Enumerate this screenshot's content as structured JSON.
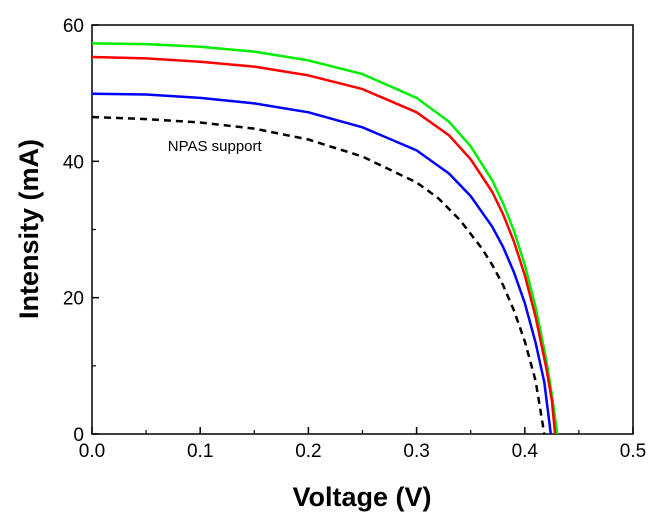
{
  "chart_data": {
    "type": "line",
    "title": "",
    "xlabel": "Voltage (V)",
    "ylabel": "Intensity (mA)",
    "xlim": [
      0,
      0.5
    ],
    "ylim": [
      0,
      60
    ],
    "x_ticks": [
      0.0,
      0.1,
      0.2,
      0.3,
      0.4,
      0.5
    ],
    "x_tick_labels": [
      "0.0",
      "0.1",
      "0.2",
      "0.3",
      "0.4",
      "0.5"
    ],
    "y_ticks": [
      0,
      20,
      40,
      60
    ],
    "y_tick_labels": [
      "0",
      "20",
      "40",
      "60"
    ],
    "grid": false,
    "legend": "none",
    "annotations": [
      {
        "text": "NPAS support",
        "x": 0.07,
        "y": 41.5
      }
    ],
    "series": [
      {
        "color": "#00ee00",
        "dash": "solid",
        "points": [
          [
            0,
            57.3
          ],
          [
            0.05,
            57.2
          ],
          [
            0.1,
            56.8
          ],
          [
            0.15,
            56.1
          ],
          [
            0.2,
            54.8
          ],
          [
            0.25,
            52.8
          ],
          [
            0.3,
            49.3
          ],
          [
            0.33,
            45.8
          ],
          [
            0.35,
            42.2
          ],
          [
            0.37,
            37.2
          ],
          [
            0.38,
            33.8
          ],
          [
            0.39,
            29.8
          ],
          [
            0.4,
            24.8
          ],
          [
            0.41,
            18.6
          ],
          [
            0.42,
            10.8
          ],
          [
            0.425,
            5.8
          ],
          [
            0.43,
            0
          ]
        ]
      },
      {
        "color": "#ff0000",
        "dash": "solid",
        "points": [
          [
            0,
            55.3
          ],
          [
            0.05,
            55.1
          ],
          [
            0.1,
            54.6
          ],
          [
            0.15,
            53.9
          ],
          [
            0.2,
            52.6
          ],
          [
            0.25,
            50.6
          ],
          [
            0.3,
            47.2
          ],
          [
            0.33,
            43.8
          ],
          [
            0.35,
            40.3
          ],
          [
            0.37,
            35.5
          ],
          [
            0.38,
            32.2
          ],
          [
            0.39,
            28.2
          ],
          [
            0.4,
            23.3
          ],
          [
            0.41,
            17.2
          ],
          [
            0.42,
            9.6
          ],
          [
            0.425,
            5.0
          ],
          [
            0.428,
            0
          ]
        ]
      },
      {
        "color": "#0000ff",
        "dash": "solid",
        "points": [
          [
            0,
            49.9
          ],
          [
            0.05,
            49.8
          ],
          [
            0.1,
            49.3
          ],
          [
            0.15,
            48.5
          ],
          [
            0.2,
            47.2
          ],
          [
            0.25,
            45.0
          ],
          [
            0.3,
            41.6
          ],
          [
            0.33,
            38.2
          ],
          [
            0.35,
            34.9
          ],
          [
            0.37,
            30.4
          ],
          [
            0.38,
            27.4
          ],
          [
            0.39,
            23.7
          ],
          [
            0.4,
            19.2
          ],
          [
            0.41,
            13.4
          ],
          [
            0.418,
            7.6
          ],
          [
            0.424,
            0
          ]
        ]
      },
      {
        "color": "#000000",
        "dash": "dashed",
        "points": [
          [
            0,
            46.5
          ],
          [
            0.05,
            46.2
          ],
          [
            0.1,
            45.7
          ],
          [
            0.15,
            44.8
          ],
          [
            0.2,
            43.2
          ],
          [
            0.25,
            40.7
          ],
          [
            0.3,
            36.9
          ],
          [
            0.32,
            34.6
          ],
          [
            0.34,
            31.4
          ],
          [
            0.36,
            27.3
          ],
          [
            0.37,
            24.8
          ],
          [
            0.38,
            21.8
          ],
          [
            0.39,
            18.1
          ],
          [
            0.4,
            13.6
          ],
          [
            0.41,
            7.8
          ],
          [
            0.418,
            0
          ]
        ]
      }
    ]
  }
}
